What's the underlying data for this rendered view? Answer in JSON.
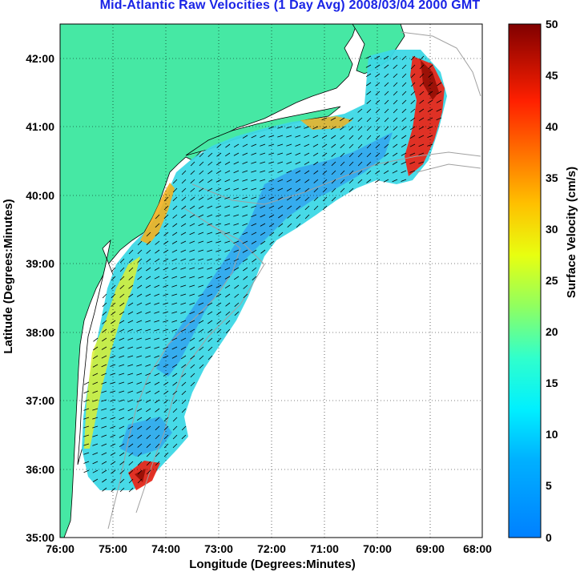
{
  "title": "Mid-Atlantic Raw Velocities (1 Day Avg) 2008/03/04 2000 GMT",
  "map": {
    "xlabel": "Longitude (Degrees:Minutes)",
    "ylabel": "Latitude (Degrees:Minutes)",
    "lon_range": [
      -76.0,
      -68.0
    ],
    "lat_range": [
      35.0,
      42.5
    ],
    "x_ticks": [
      "76:00",
      "75:00",
      "74:00",
      "73:00",
      "72:00",
      "71:00",
      "70:00",
      "69:00",
      "68:00"
    ],
    "y_ticks": [
      "35:00",
      "36:00",
      "37:00",
      "38:00",
      "39:00",
      "40:00",
      "41:00",
      "42:00"
    ],
    "grid": "dotted",
    "colors": {
      "land": "#46e8a4",
      "water_bg": "#ffffff",
      "bathymetry": "#a0a0a0",
      "title": "#1a24e6"
    }
  },
  "colorbar": {
    "label": "Surface Velocity (cm/s)",
    "ticks": [
      "0",
      "5",
      "10",
      "15",
      "20",
      "25",
      "30",
      "35",
      "40",
      "45",
      "50"
    ],
    "min": 0,
    "max": 50,
    "colormap": "jet"
  }
}
